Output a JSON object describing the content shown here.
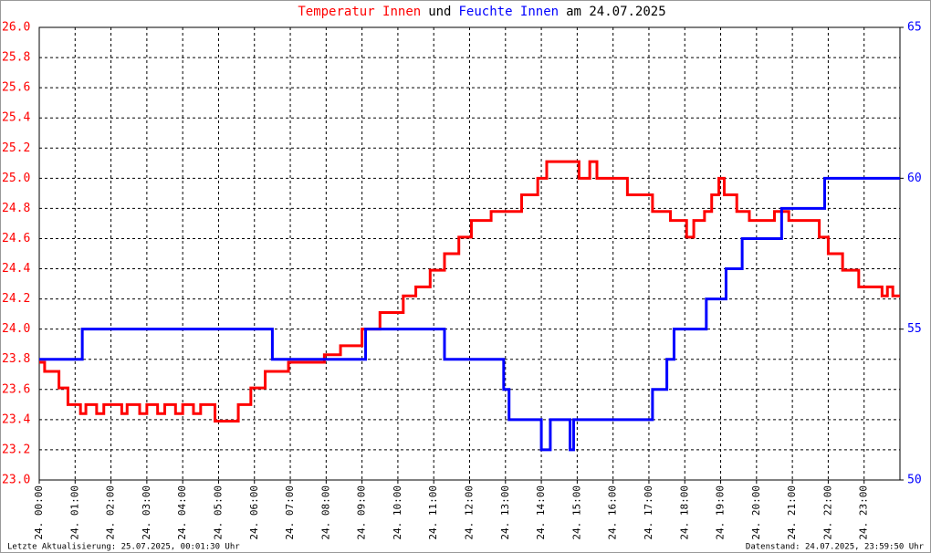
{
  "chart_data": {
    "type": "step",
    "title_parts": [
      "Temperatur Innen",
      "und",
      "Feuchte Innen",
      "am 24.07.2025"
    ],
    "footer_left": "Letzte Aktualisierung: 25.07.2025, 00:01:30 Uhr",
    "footer_right": "Datenstand: 24.07.2025, 23:59:50 Uhr",
    "grid": true,
    "xlim": [
      0,
      24
    ],
    "xticks": [
      {
        "value": 0,
        "label": "24. 00:00"
      },
      {
        "value": 1,
        "label": "24. 01:00"
      },
      {
        "value": 2,
        "label": "24. 02:00"
      },
      {
        "value": 3,
        "label": "24. 03:00"
      },
      {
        "value": 4,
        "label": "24. 04:00"
      },
      {
        "value": 5,
        "label": "24. 05:00"
      },
      {
        "value": 6,
        "label": "24. 06:00"
      },
      {
        "value": 7,
        "label": "24. 07:00"
      },
      {
        "value": 8,
        "label": "24. 08:00"
      },
      {
        "value": 9,
        "label": "24. 09:00"
      },
      {
        "value": 10,
        "label": "24. 10:00"
      },
      {
        "value": 11,
        "label": "24. 11:00"
      },
      {
        "value": 12,
        "label": "24. 12:00"
      },
      {
        "value": 13,
        "label": "24. 13:00"
      },
      {
        "value": 14,
        "label": "24. 14:00"
      },
      {
        "value": 15,
        "label": "24. 15:00"
      },
      {
        "value": 16,
        "label": "24. 16:00"
      },
      {
        "value": 17,
        "label": "24. 17:00"
      },
      {
        "value": 18,
        "label": "24. 18:00"
      },
      {
        "value": 19,
        "label": "24. 19:00"
      },
      {
        "value": 20,
        "label": "24. 20:00"
      },
      {
        "value": 21,
        "label": "24. 21:00"
      },
      {
        "value": 22,
        "label": "24. 22:00"
      },
      {
        "value": 23,
        "label": "24. 23:00"
      }
    ],
    "ylim": [
      23.0,
      26.0
    ],
    "yticks": [
      {
        "value": 23.0,
        "label": "23.0"
      },
      {
        "value": 23.2,
        "label": "23.2"
      },
      {
        "value": 23.4,
        "label": "23.4"
      },
      {
        "value": 23.6,
        "label": "23.6"
      },
      {
        "value": 23.8,
        "label": "23.8"
      },
      {
        "value": 24.0,
        "label": "24.0"
      },
      {
        "value": 24.2,
        "label": "24.2"
      },
      {
        "value": 24.4,
        "label": "24.4"
      },
      {
        "value": 24.6,
        "label": "24.6"
      },
      {
        "value": 24.8,
        "label": "24.8"
      },
      {
        "value": 25.0,
        "label": "25.0"
      },
      {
        "value": 25.2,
        "label": "25.2"
      },
      {
        "value": 25.4,
        "label": "25.4"
      },
      {
        "value": 25.6,
        "label": "25.6"
      },
      {
        "value": 25.8,
        "label": "25.8"
      },
      {
        "value": 26.0,
        "label": "26.0"
      }
    ],
    "y2lim": [
      50,
      65
    ],
    "y2ticks": [
      50,
      55,
      60,
      65
    ],
    "series": [
      {
        "name": "Temperatur Innen",
        "color": "#ff0000",
        "x": [
          0,
          0.15,
          0.55,
          0.8,
          1.15,
          1.3,
          1.6,
          1.8,
          2.3,
          2.45,
          2.8,
          3.0,
          3.3,
          3.5,
          3.8,
          4.0,
          4.3,
          4.5,
          4.9,
          5.55,
          5.9,
          6.3,
          6.95,
          7.95,
          8.4,
          9.0,
          9.5,
          10.15,
          10.5,
          10.9,
          11.3,
          11.7,
          12.05,
          12.6,
          13.45,
          13.9,
          14.15,
          15.05,
          15.35,
          15.55,
          15.9,
          16.4,
          17.1,
          17.6,
          18.05,
          18.25,
          18.55,
          18.75,
          18.95,
          19.1,
          19.45,
          19.8,
          20.5,
          20.9,
          21.0,
          21.75,
          22.0,
          22.4,
          22.85,
          23.5,
          23.65,
          23.8,
          23.9
        ],
        "values": [
          23.78,
          23.72,
          23.61,
          23.5,
          23.44,
          23.5,
          23.44,
          23.5,
          23.44,
          23.5,
          23.44,
          23.5,
          23.44,
          23.5,
          23.44,
          23.5,
          23.44,
          23.5,
          23.39,
          23.5,
          23.61,
          23.72,
          23.78,
          23.83,
          23.89,
          24.0,
          24.11,
          24.22,
          24.28,
          24.39,
          24.5,
          24.61,
          24.72,
          24.78,
          24.89,
          25.0,
          25.11,
          25.0,
          25.11,
          25.0,
          25.0,
          24.89,
          24.78,
          24.72,
          24.61,
          24.72,
          24.78,
          24.89,
          25.0,
          24.89,
          24.78,
          24.72,
          24.78,
          24.72,
          24.72,
          24.61,
          24.5,
          24.39,
          24.28,
          24.22,
          24.28,
          24.22,
          24.22
        ]
      },
      {
        "name": "Feuchte Innen",
        "color": "#0000ff",
        "axis": "y2",
        "x": [
          0,
          1.2,
          6.5,
          9.1,
          11.3,
          12.95,
          13.1,
          14.0,
          14.25,
          14.8,
          14.9,
          15.0,
          17.1,
          17.5,
          17.7,
          18.6,
          19.15,
          19.6,
          20.7,
          21.9
        ],
        "values": [
          54,
          55,
          54,
          55,
          54,
          53,
          52,
          51,
          52,
          51,
          52,
          52,
          53,
          54,
          55,
          56,
          57,
          58,
          59,
          60
        ]
      }
    ]
  }
}
